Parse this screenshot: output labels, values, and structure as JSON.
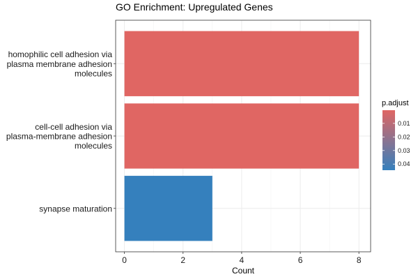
{
  "chart_data": {
    "type": "bar",
    "orientation": "horizontal",
    "title": "GO Enrichment: Upregulated Genes",
    "xlabel": "Count",
    "ylabel": "",
    "xlim": [
      -0.3,
      8.4
    ],
    "x_ticks": [
      0,
      2,
      4,
      6,
      8
    ],
    "grid": true,
    "categories": [
      [
        "homophilic cell adhesion via",
        "plasma membrane adhesion",
        "molecules"
      ],
      [
        "cell-cell adhesion via",
        "plasma-membrane adhesion",
        "molecules"
      ],
      [
        "synapse maturation"
      ]
    ],
    "values": [
      8,
      8,
      3
    ],
    "p_adjust": [
      0.0003,
      0.0003,
      0.0445
    ],
    "legend": {
      "title": "p.adjust",
      "placement": "right",
      "range": [
        0.0003,
        0.0445
      ],
      "ticks": [
        0.01,
        0.02,
        0.03,
        0.04
      ],
      "tick_labels": [
        "0.01",
        "0.02",
        "0.03",
        "0.04"
      ],
      "low_color": "#e06663",
      "high_color": "#3580bd"
    }
  }
}
